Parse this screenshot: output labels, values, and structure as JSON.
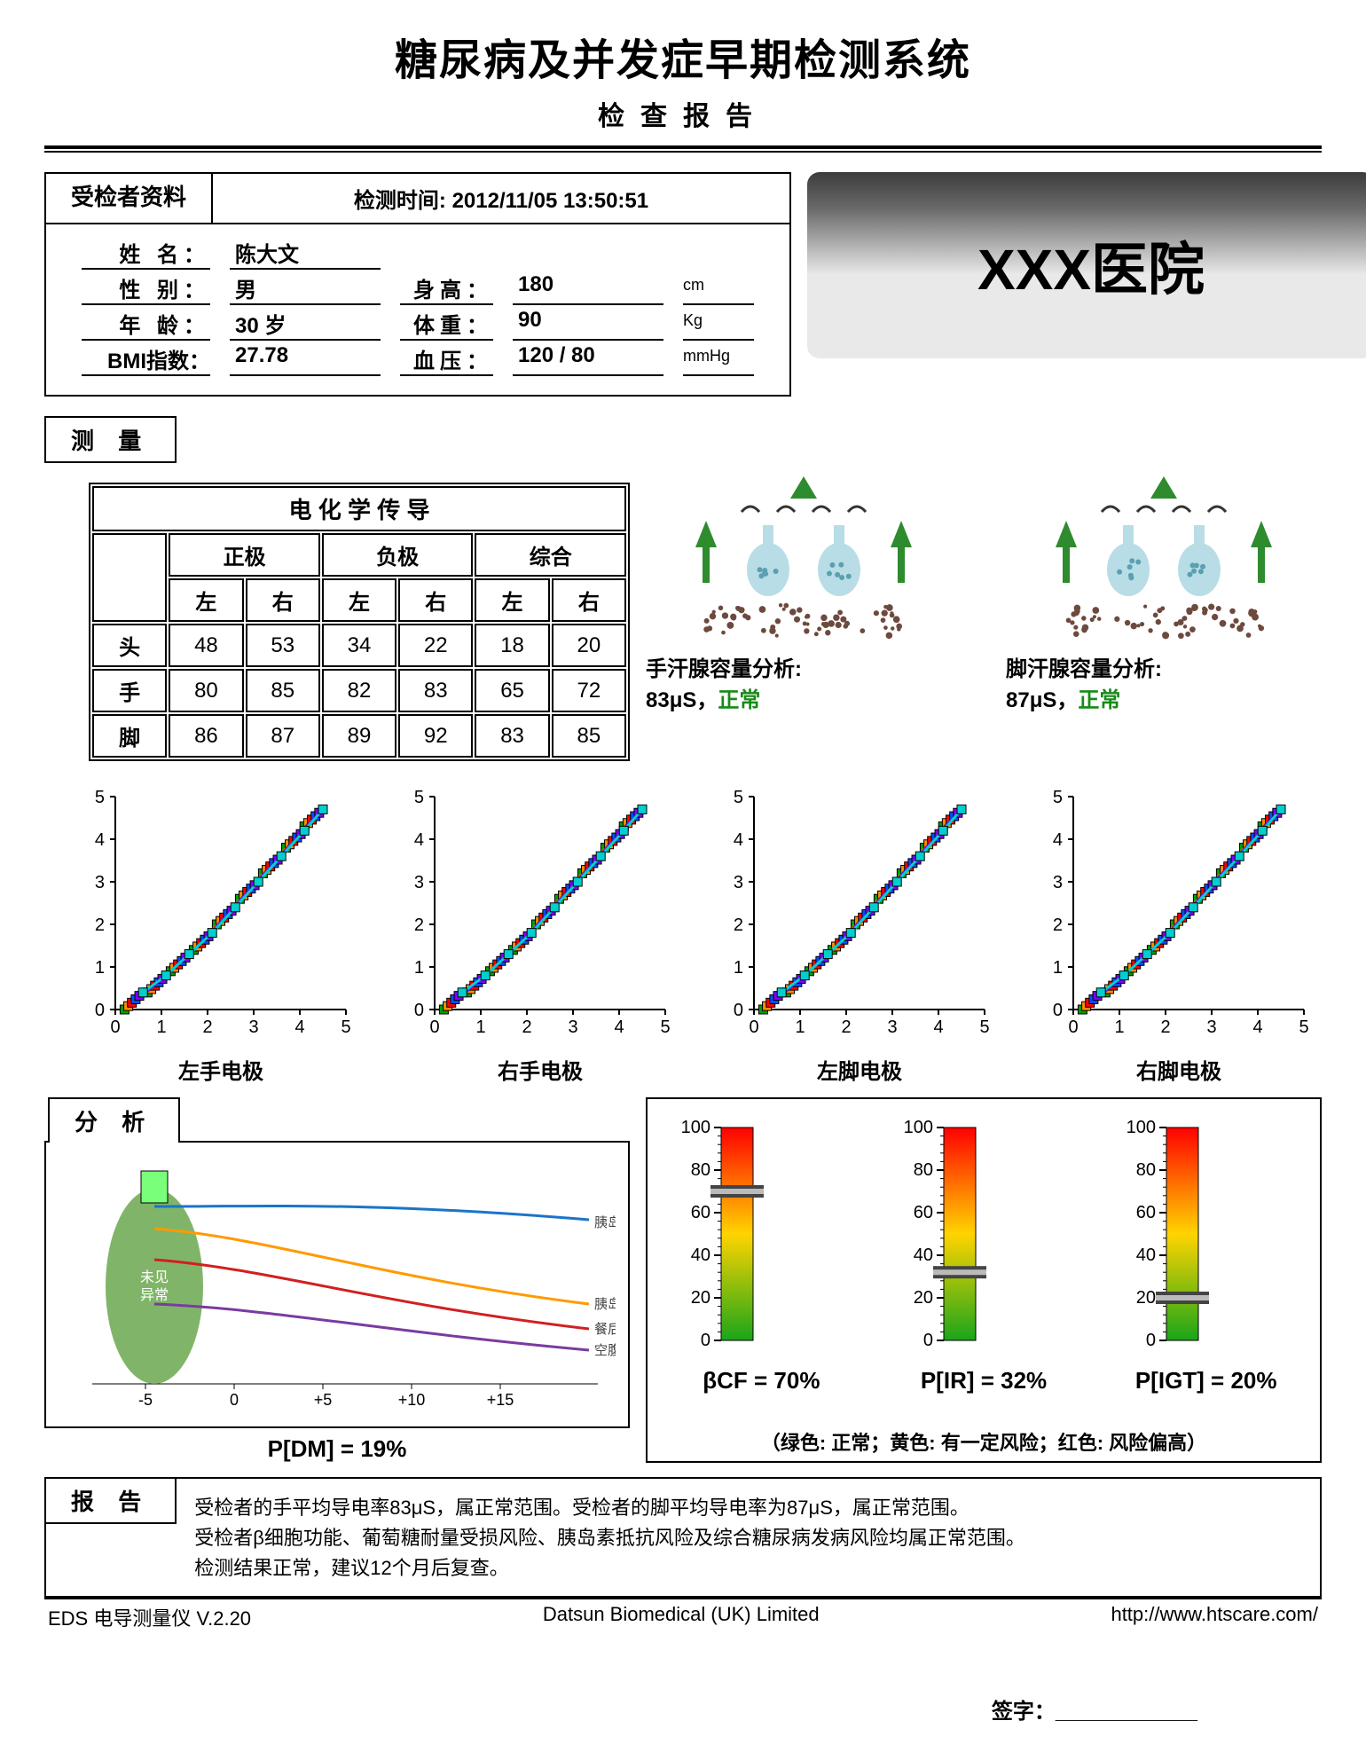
{
  "header": {
    "title": "糖尿病及并发症早期检测系统",
    "subtitle": "检查报告"
  },
  "hospital": "XXX医院",
  "patient": {
    "tab": "受检者资料",
    "detect_time_label": "检测时间:",
    "detect_time": "2012/11/05 13:50:51",
    "name_label": "姓 名：",
    "name": "陈大文",
    "sex_label": "性 别：",
    "sex": "男",
    "age_label": "年 龄：",
    "age": "30 岁",
    "bmi_label": "BMI指数：",
    "bmi": "27.78",
    "height_label": "身高：",
    "height": "180",
    "height_unit": "cm",
    "weight_label": "体重：",
    "weight": "90",
    "weight_unit": "Kg",
    "bp_label": "血压：",
    "bp": "120 / 80",
    "bp_unit": "mmHg"
  },
  "measure_tab": "测 量",
  "echem": {
    "title": "电 化 学 传 导",
    "col_groups": [
      "正极",
      "负极",
      "综合"
    ],
    "sub_cols": [
      "左",
      "右"
    ],
    "rows": [
      {
        "name": "头",
        "vals": [
          48,
          53,
          34,
          22,
          18,
          20
        ]
      },
      {
        "name": "手",
        "vals": [
          80,
          85,
          82,
          83,
          65,
          72
        ]
      },
      {
        "name": "脚",
        "vals": [
          86,
          87,
          89,
          92,
          83,
          85
        ]
      }
    ]
  },
  "gland": {
    "hand_label": "手汗腺容量分析:",
    "hand_val": "83μS，",
    "hand_status": "正常",
    "foot_label": "脚汗腺容量分析:",
    "foot_val": "87μS，",
    "foot_status": "正常",
    "svg_colors": {
      "arrow": "#2e8b2e",
      "cup": "#b8dde6",
      "skin": "#c78b70",
      "pore": "#6d4a3e"
    }
  },
  "electrode_charts": {
    "labels": [
      "左手电极",
      "右手电极",
      "左脚电极",
      "右脚电极"
    ],
    "axis": {
      "x_ticks": [
        0,
        1,
        2,
        3,
        4,
        5
      ],
      "y_ticks": [
        0,
        1,
        2,
        3,
        4,
        5
      ]
    },
    "series_colors": [
      "#00a000",
      "#ff8c00",
      "#ff0000",
      "#0050ff",
      "#8000ff",
      "#00cfcf"
    ],
    "diag_points": [
      [
        0.4,
        0.2
      ],
      [
        0.9,
        0.6
      ],
      [
        1.4,
        1.1
      ],
      [
        1.9,
        1.6
      ],
      [
        2.4,
        2.2
      ],
      [
        2.9,
        2.8
      ],
      [
        3.4,
        3.4
      ],
      [
        3.9,
        4.0
      ],
      [
        4.3,
        4.5
      ]
    ]
  },
  "analysis": {
    "tab": "分 析",
    "pdm_label": "P[DM] = 19%",
    "ellipse_text": "未见\n异常",
    "curve_labels": [
      "胰岛素抵抗",
      "胰岛素分泌",
      "餐后血糖",
      "空腹血糖"
    ],
    "x_ticks": [
      "-5",
      "0",
      "+5",
      "+10",
      "+15"
    ],
    "curve_colors": {
      "resist": "#1a74c9",
      "secret": "#ff9a00",
      "post": "#d21f1f",
      "fast": "#7a3ba0",
      "marker": "#7aff7a",
      "ellipse": "#6aa84f"
    }
  },
  "gauges": {
    "items": [
      {
        "label": "βCF = 70%",
        "value": 70
      },
      {
        "label": "P[IR] = 32%",
        "value": 32
      },
      {
        "label": "P[IGT] = 20%",
        "value": 20
      }
    ],
    "y_ticks": [
      0,
      20,
      40,
      60,
      80,
      100
    ],
    "gradient": [
      "#1aa51a",
      "#ffd400",
      "#ff0000"
    ],
    "legend": "（绿色: 正常；黄色: 有一定风险；红色: 风险偏高）"
  },
  "report": {
    "tab": "报 告",
    "line1": "受检者的手平均导电率83μS，属正常范围。受检者的脚平均导电率为87μS，属正常范围。",
    "line2": "受检者β细胞功能、葡萄糖耐量受损风险、胰岛素抵抗风险及综合糖尿病发病风险均属正常范围。",
    "line3": "检测结果正常，建议12个月后复查。"
  },
  "footer": {
    "left": "EDS 电导测量仪 V.2.20",
    "mid": "Datsun Biomedical (UK) Limited",
    "right": "http://www.htscare.com/"
  },
  "signature": "签字："
}
